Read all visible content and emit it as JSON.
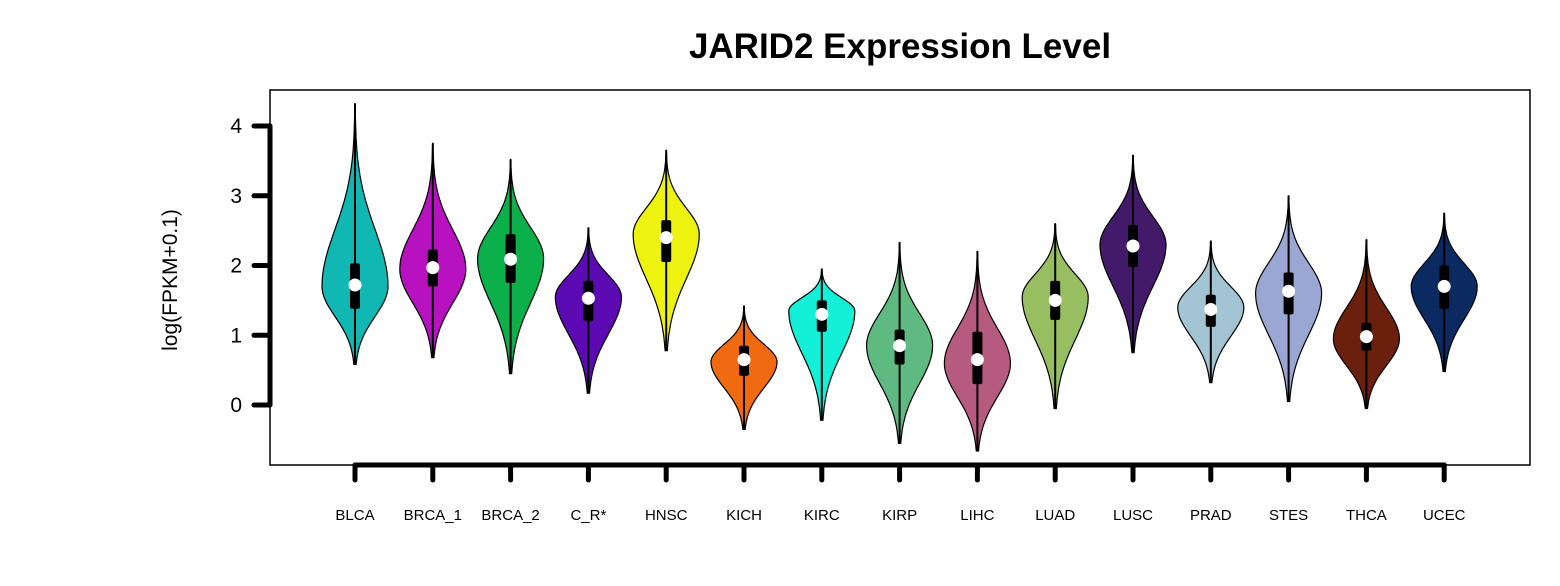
{
  "chart_data": {
    "type": "violin",
    "title": "JARID2 Expression Level",
    "ylabel": "log(FPKM+0.1)",
    "xlabel": "",
    "ylim": [
      -0.85,
      4.5
    ],
    "yticks": [
      0,
      1,
      2,
      3,
      4
    ],
    "grid": false,
    "legend": "none",
    "categories": [
      "BLCA",
      "BRCA_1",
      "BRCA_2",
      "C_R*",
      "HNSC",
      "KICH",
      "KIRC",
      "KIRP",
      "LIHC",
      "LUAD",
      "LUSC",
      "PRAD",
      "STES",
      "THCA",
      "UCEC"
    ],
    "colors": [
      "#11b7b2",
      "#b711c0",
      "#0bb04b",
      "#5c0ab3",
      "#eef20f",
      "#f26a10",
      "#14f0d7",
      "#5fba82",
      "#b75a80",
      "#97bf62",
      "#43196a",
      "#a2c4d3",
      "#9aa7d3",
      "#6a200c",
      "#0b2a62"
    ],
    "violins": [
      {
        "name": "BLCA",
        "median": 1.72,
        "q1": 1.38,
        "q3": 2.03,
        "min": 0.58,
        "max": 4.32,
        "mode": 1.7,
        "kde": "unimodal"
      },
      {
        "name": "BRCA_1",
        "median": 1.97,
        "q1": 1.7,
        "q3": 2.23,
        "min": 0.68,
        "max": 3.75,
        "mode": 1.95,
        "kde": "unimodal"
      },
      {
        "name": "BRCA_2",
        "median": 2.09,
        "q1": 1.75,
        "q3": 2.45,
        "min": 0.45,
        "max": 3.52,
        "mode": 2.1,
        "kde": "unimodal"
      },
      {
        "name": "C_R*",
        "median": 1.53,
        "q1": 1.2,
        "q3": 1.78,
        "min": 0.17,
        "max": 2.54,
        "mode": 1.55,
        "kde": "unimodal"
      },
      {
        "name": "HNSC",
        "median": 2.4,
        "q1": 2.05,
        "q3": 2.65,
        "min": 0.78,
        "max": 3.65,
        "mode": 2.45,
        "kde": "unimodal"
      },
      {
        "name": "KICH",
        "median": 0.65,
        "q1": 0.42,
        "q3": 0.85,
        "min": -0.35,
        "max": 1.42,
        "mode": 0.62,
        "kde": "unimodal"
      },
      {
        "name": "KIRC",
        "median": 1.3,
        "q1": 1.05,
        "q3": 1.5,
        "min": -0.22,
        "max": 1.95,
        "mode": 1.35,
        "kde": "unimodal"
      },
      {
        "name": "KIRP",
        "median": 0.85,
        "q1": 0.58,
        "q3": 1.08,
        "min": -0.55,
        "max": 2.33,
        "mode": 0.85,
        "kde": "unimodal"
      },
      {
        "name": "LIHC",
        "median": 0.65,
        "q1": 0.3,
        "q3": 1.05,
        "min": -0.66,
        "max": 2.2,
        "mode": 0.6,
        "kde": "unimodal"
      },
      {
        "name": "LUAD",
        "median": 1.5,
        "q1": 1.22,
        "q3": 1.78,
        "min": -0.05,
        "max": 2.6,
        "mode": 1.55,
        "kde": "unimodal"
      },
      {
        "name": "LUSC",
        "median": 2.28,
        "q1": 1.98,
        "q3": 2.58,
        "min": 0.75,
        "max": 3.58,
        "mode": 2.3,
        "kde": "unimodal"
      },
      {
        "name": "PRAD",
        "median": 1.37,
        "q1": 1.12,
        "q3": 1.58,
        "min": 0.32,
        "max": 2.35,
        "mode": 1.4,
        "kde": "unimodal"
      },
      {
        "name": "STES",
        "median": 1.63,
        "q1": 1.3,
        "q3": 1.9,
        "min": 0.05,
        "max": 3.0,
        "mode": 1.6,
        "kde": "unimodal"
      },
      {
        "name": "THCA",
        "median": 0.98,
        "q1": 0.78,
        "q3": 1.18,
        "min": -0.05,
        "max": 2.37,
        "mode": 0.95,
        "kde": "unimodal"
      },
      {
        "name": "UCEC",
        "median": 1.7,
        "q1": 1.38,
        "q3": 2.0,
        "min": 0.48,
        "max": 2.75,
        "mode": 1.7,
        "kde": "unimodal"
      }
    ]
  }
}
